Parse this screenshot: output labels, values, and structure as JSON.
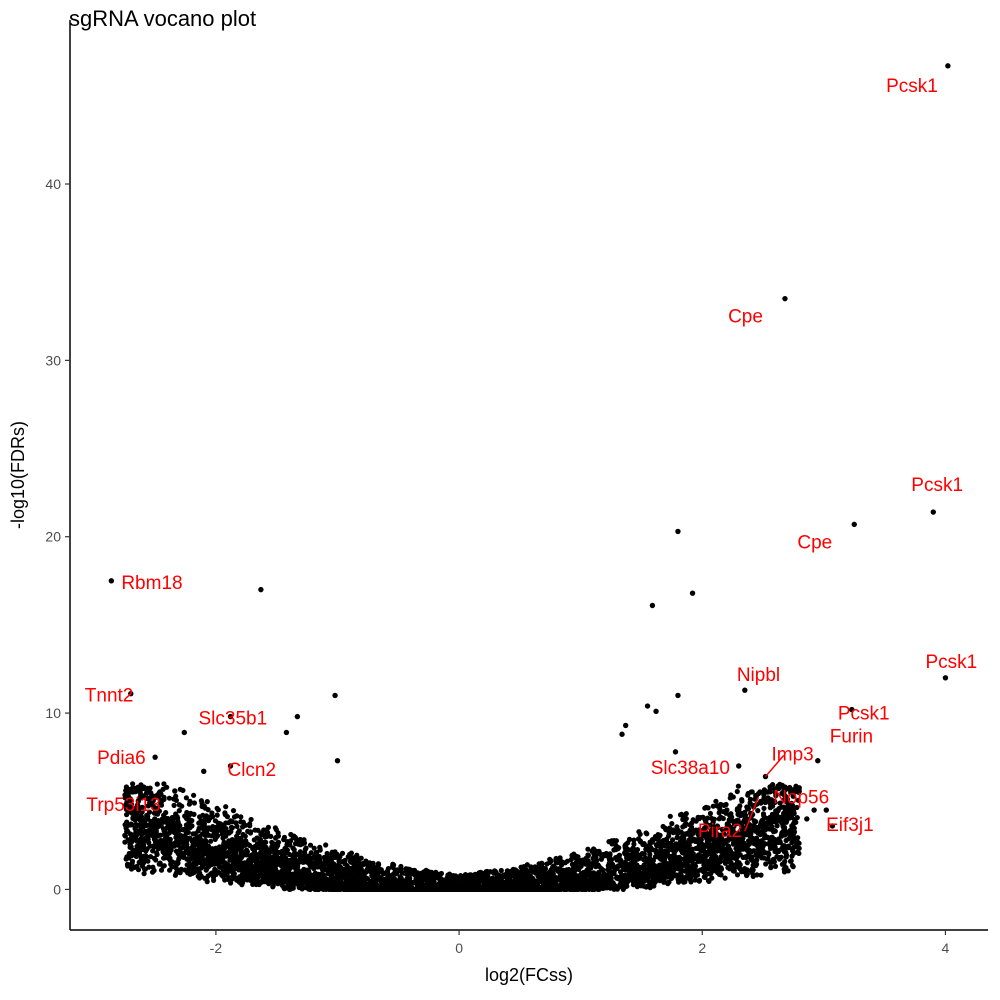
{
  "chart_data": {
    "type": "scatter",
    "title": "sgRNA vocano plot",
    "xlabel": "log2(FCss)",
    "ylabel": "-log10(FDRs)",
    "xlim": [
      -3.2,
      4.35
    ],
    "ylim": [
      -2.3,
      49.3
    ],
    "xticks": [
      -2,
      0,
      2,
      4
    ],
    "yticks": [
      0,
      10,
      20,
      30,
      40
    ],
    "grid": false,
    "legend": "none",
    "point_color": "#000000",
    "label_color": "#ff0000",
    "labeled_points": [
      {
        "gene": "Pcsk1",
        "x": 4.02,
        "y": 46.7
      },
      {
        "gene": "Cpe",
        "x": 2.68,
        "y": 33.5
      },
      {
        "gene": "Pcsk1",
        "x": 3.9,
        "y": 21.4
      },
      {
        "gene": "Cpe",
        "x": 3.25,
        "y": 20.7
      },
      {
        "gene": "Rbm18",
        "x": -2.86,
        "y": 17.5
      },
      {
        "gene": "Pcsk1",
        "x": 4.0,
        "y": 12.0
      },
      {
        "gene": "Nipbl",
        "x": 2.35,
        "y": 11.3
      },
      {
        "gene": "Tnnt2",
        "x": -2.7,
        "y": 11.1
      },
      {
        "gene": "Pcsk1",
        "x": 3.23,
        "y": 10.2
      },
      {
        "gene": "Slc35b1",
        "x": -1.88,
        "y": 9.8
      },
      {
        "gene": "Slc38a10",
        "x": 2.3,
        "y": 7.0
      },
      {
        "gene": "Imp3",
        "x": 2.52,
        "y": 6.4
      },
      {
        "gene": "Furin",
        "x": 2.95,
        "y": 7.3
      },
      {
        "gene": "Clcn2",
        "x": -1.88,
        "y": 7.0
      },
      {
        "gene": "Pdia6",
        "x": -2.5,
        "y": 7.5
      },
      {
        "gene": "Eif3j1",
        "x": 2.92,
        "y": 4.5
      },
      {
        "gene": "Nop56",
        "x": 2.6,
        "y": 5.5
      },
      {
        "gene": "Trp53i13",
        "x": -2.3,
        "y": 4.8
      },
      {
        "gene": "Pira2",
        "x": 2.35,
        "y": 3.3
      }
    ],
    "other_points": [
      {
        "x": 1.8,
        "y": 20.3
      },
      {
        "x": 1.92,
        "y": 16.8
      },
      {
        "x": 1.59,
        "y": 16.1
      },
      {
        "x": -1.63,
        "y": 17.0
      },
      {
        "x": -1.02,
        "y": 11.0
      },
      {
        "x": 1.8,
        "y": 11.0
      },
      {
        "x": 1.55,
        "y": 10.4
      },
      {
        "x": 1.62,
        "y": 10.1
      },
      {
        "x": -1.33,
        "y": 9.8
      },
      {
        "x": -2.26,
        "y": 8.9
      },
      {
        "x": -1.42,
        "y": 8.9
      },
      {
        "x": 1.37,
        "y": 9.3
      },
      {
        "x": 1.34,
        "y": 8.8
      },
      {
        "x": -1.0,
        "y": 7.3
      },
      {
        "x": -2.1,
        "y": 6.7
      },
      {
        "x": 1.78,
        "y": 7.8
      },
      {
        "x": 3.02,
        "y": 4.5
      },
      {
        "x": 3.07,
        "y": 3.6
      },
      {
        "x": 2.86,
        "y": 4.0
      },
      {
        "x": 2.75,
        "y": 4.3
      }
    ],
    "cloud": {
      "x_range": [
        -2.75,
        2.8
      ],
      "y_max": 5.5
    }
  }
}
